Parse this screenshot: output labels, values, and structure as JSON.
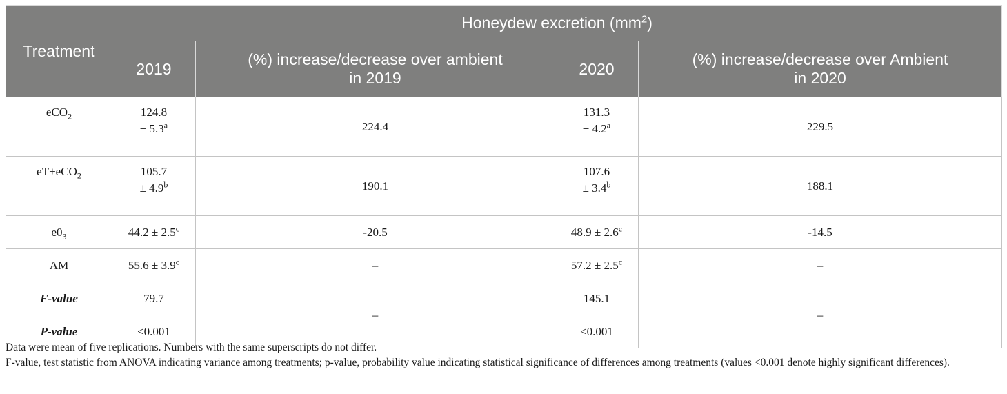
{
  "header": {
    "treatment": "Treatment",
    "group_title_main": "Honeydew excretion (mm",
    "group_title_sup": "2",
    "group_title_end": ")",
    "col_2019": "2019",
    "col_pct_2019_l1": "(%) increase/decrease over ambient",
    "col_pct_2019_l2": "in 2019",
    "col_2020": "2020",
    "col_pct_2020_l1": "(%) increase/decrease over Ambient",
    "col_pct_2020_l2": "in 2020"
  },
  "rows": [
    {
      "t_main": "eCO",
      "t_sub": "2",
      "v2019_l1": "124.8",
      "v2019_l2": "± 5.3",
      "v2019_sup": "a",
      "p2019": "224.4",
      "v2020_l1": "131.3",
      "v2020_l2": "± 4.2",
      "v2020_sup": "a",
      "p2020": "229.5"
    },
    {
      "t_main": "eT+eCO",
      "t_sub": "2",
      "v2019_l1": "105.7",
      "v2019_l2": "± 4.9",
      "v2019_sup": "b",
      "p2019": "190.1",
      "v2020_l1": "107.6",
      "v2020_l2": "± 3.4",
      "v2020_sup": "b",
      "p2020": "188.1"
    },
    {
      "t_main": "e0",
      "t_sub": "3",
      "v2019": "44.2 ± 2.5",
      "v2019_sup": "c",
      "p2019": "-20.5",
      "v2020": "48.9 ± 2.6",
      "v2020_sup": "c",
      "p2020": "-14.5"
    },
    {
      "t_main": "AM",
      "v2019": "55.6 ± 3.9",
      "v2019_sup": "c",
      "p2019": "–",
      "v2020": "57.2 ± 2.5",
      "v2020_sup": "c",
      "p2020": "–"
    }
  ],
  "stats": {
    "f_label": "F-value",
    "f_2019": "79.7",
    "f_2020": "145.1",
    "p_label": "P-value",
    "p_2019": "<0.001",
    "p_2020": "<0.001",
    "merged_pct_2019": "–",
    "merged_pct_2020": "–"
  },
  "footnotes": {
    "line1": "Data were mean of five replications. Numbers with the same superscripts do not differ.",
    "line2": "F-value, test statistic from ANOVA indicating variance among treatments; p-value, probability value indicating statistical significance of differences among treatments (values <0.001 denote highly significant differences)."
  }
}
